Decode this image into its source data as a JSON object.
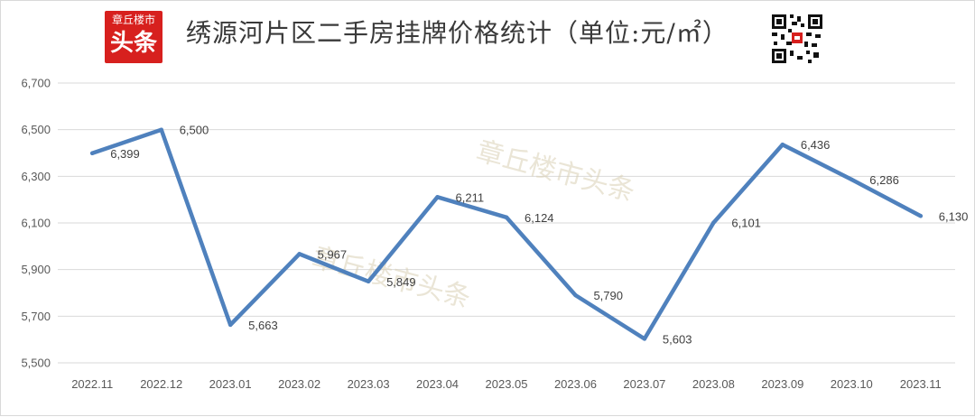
{
  "header": {
    "logo_small": "章丘楼市",
    "logo_big": "头条",
    "title": "绣源河片区二手房挂牌价格统计（单位:元/㎡）"
  },
  "watermark": "章丘楼市头条",
  "colors": {
    "line": "#4f81bd",
    "grid": "#d9d9d9",
    "logo": "#d7201e"
  },
  "chart_data": {
    "type": "line",
    "title": "绣源河片区二手房挂牌价格统计（单位:元/㎡）",
    "categories": [
      "2022.11",
      "2022.12",
      "2023.01",
      "2023.02",
      "2023.03",
      "2023.04",
      "2023.05",
      "2023.06",
      "2023.07",
      "2023.08",
      "2023.09",
      "2023.10",
      "2023.11"
    ],
    "values": [
      6399,
      6500,
      5663,
      5967,
      5849,
      6211,
      6124,
      5790,
      5603,
      6101,
      6436,
      6286,
      6130
    ],
    "data_labels": [
      "6,399",
      "6,500",
      "5,663",
      "5,967",
      "5,849",
      "6,211",
      "6,124",
      "5,790",
      "5,603",
      "6,101",
      "6,436",
      "6,286",
      "6,130"
    ],
    "ylim": [
      5500,
      6700
    ],
    "yticks": [
      5500,
      5700,
      5900,
      6100,
      6300,
      6500,
      6700
    ],
    "ytick_labels": [
      "5,500",
      "5,700",
      "5,900",
      "6,100",
      "6,300",
      "6,500",
      "6,700"
    ],
    "grid": true,
    "legend": "none"
  }
}
